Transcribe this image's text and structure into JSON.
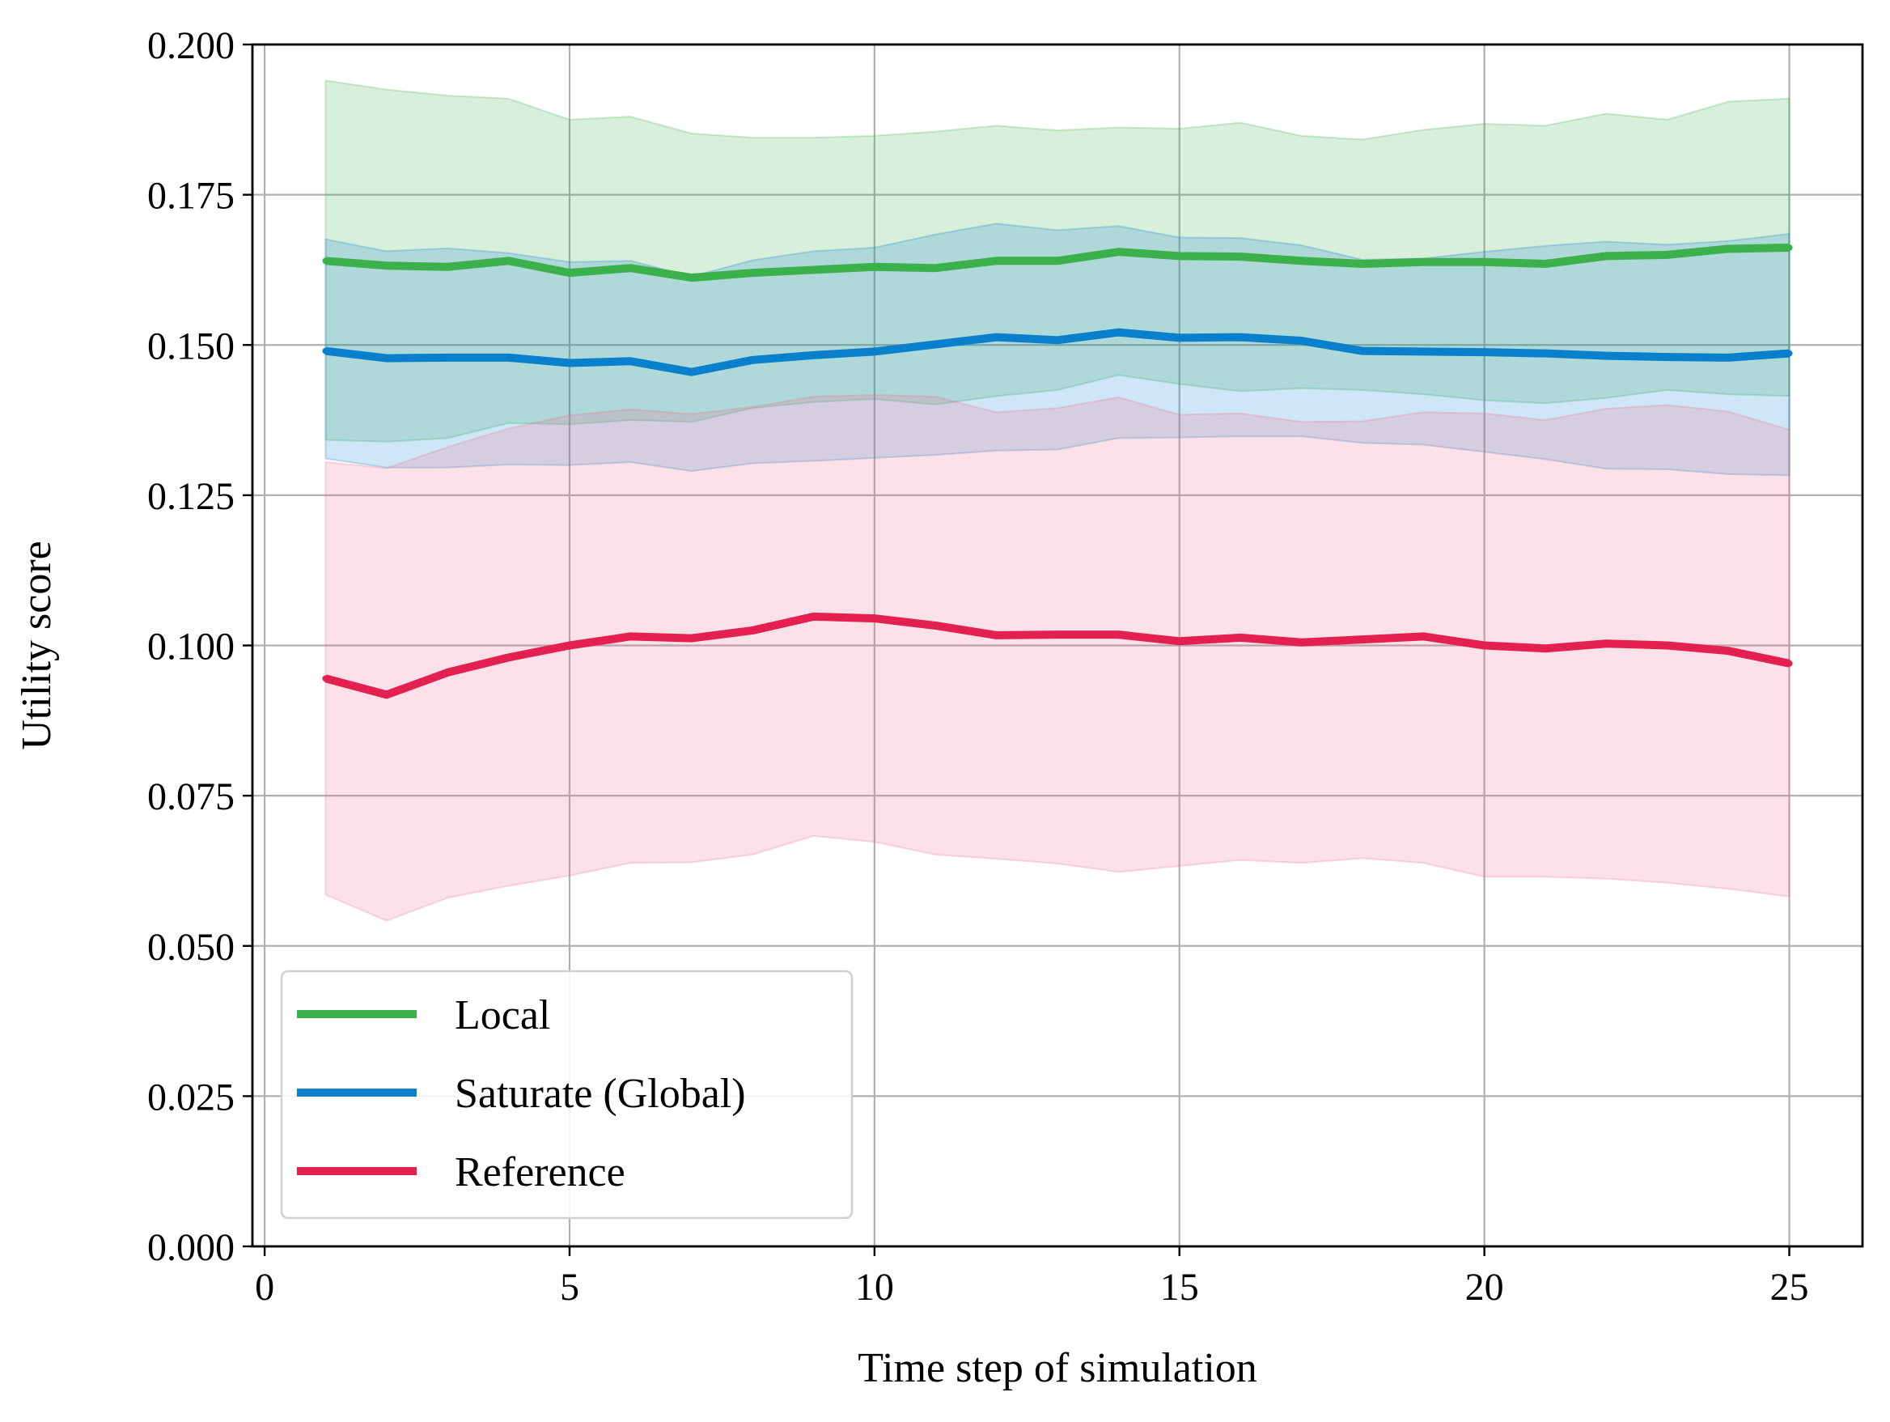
{
  "chart_data": {
    "type": "line",
    "title": "",
    "xlabel": "Time step of simulation",
    "ylabel": "Utility score",
    "xlim": [
      -0.2,
      26.2
    ],
    "ylim": [
      0.0,
      0.2
    ],
    "grid": true,
    "legend_position": "bottom-left",
    "x_ticks": [
      0,
      5,
      10,
      15,
      20,
      25
    ],
    "x_tick_labels": [
      "0",
      "5",
      "10",
      "15",
      "20",
      "25"
    ],
    "y_ticks": [
      0.0,
      0.025,
      0.05,
      0.075,
      0.1,
      0.125,
      0.15,
      0.175,
      0.2
    ],
    "y_tick_labels": [
      "0.000",
      "0.025",
      "0.050",
      "0.075",
      "0.100",
      "0.125",
      "0.150",
      "0.175",
      "0.200"
    ],
    "x": [
      1,
      2,
      3,
      4,
      5,
      6,
      7,
      8,
      9,
      10,
      11,
      12,
      13,
      14,
      15,
      16,
      17,
      18,
      19,
      20,
      21,
      22,
      23,
      24,
      25
    ],
    "series": [
      {
        "name": "Local",
        "color": "#3cb04a",
        "band_color": "#3cb04a",
        "values": [
          0.164,
          0.1632,
          0.163,
          0.164,
          0.162,
          0.1628,
          0.1612,
          0.162,
          0.1625,
          0.163,
          0.1628,
          0.164,
          0.164,
          0.1655,
          0.1648,
          0.1647,
          0.164,
          0.1635,
          0.1638,
          0.1638,
          0.1635,
          0.1648,
          0.165,
          0.166,
          0.1662
        ],
        "upper": [
          0.194,
          0.1925,
          0.1915,
          0.191,
          0.1875,
          0.188,
          0.1852,
          0.1845,
          0.1845,
          0.1848,
          0.1855,
          0.1865,
          0.1857,
          0.1862,
          0.186,
          0.187,
          0.1848,
          0.1842,
          0.1858,
          0.1868,
          0.1865,
          0.1885,
          0.1875,
          0.1905,
          0.191
        ],
        "lower": [
          0.1342,
          0.1339,
          0.1345,
          0.137,
          0.1368,
          0.1375,
          0.1372,
          0.1395,
          0.1405,
          0.141,
          0.1401,
          0.1415,
          0.1425,
          0.145,
          0.1435,
          0.1423,
          0.1428,
          0.1425,
          0.1418,
          0.1408,
          0.1403,
          0.1412,
          0.1425,
          0.1418,
          0.1415
        ]
      },
      {
        "name": "Saturate (Global)",
        "color": "#0a80cc",
        "band_color": "#0a80cc",
        "values": [
          0.149,
          0.1478,
          0.1479,
          0.1479,
          0.147,
          0.1473,
          0.1455,
          0.1475,
          0.1483,
          0.1489,
          0.1501,
          0.1513,
          0.1508,
          0.1521,
          0.1512,
          0.1513,
          0.1507,
          0.149,
          0.1489,
          0.1488,
          0.1486,
          0.1482,
          0.148,
          0.1479,
          0.1486
        ],
        "upper": [
          0.1676,
          0.1656,
          0.1661,
          0.1653,
          0.1638,
          0.164,
          0.1614,
          0.1641,
          0.1656,
          0.1662,
          0.1684,
          0.1702,
          0.1691,
          0.1698,
          0.1679,
          0.1678,
          0.1666,
          0.1642,
          0.1644,
          0.1655,
          0.1665,
          0.1672,
          0.1667,
          0.1673,
          0.1685
        ],
        "lower": [
          0.1311,
          0.1296,
          0.1296,
          0.1301,
          0.13,
          0.1305,
          0.129,
          0.1303,
          0.1307,
          0.1312,
          0.1317,
          0.1324,
          0.1326,
          0.1345,
          0.1346,
          0.1348,
          0.1348,
          0.1337,
          0.1334,
          0.1322,
          0.131,
          0.1294,
          0.1293,
          0.1285,
          0.1283
        ]
      },
      {
        "name": "Reference",
        "color": "#e3204f",
        "band_color": "#ee6d8a",
        "values": [
          0.0945,
          0.0918,
          0.0955,
          0.098,
          0.1,
          0.1015,
          0.1012,
          0.1025,
          0.1048,
          0.1045,
          0.1033,
          0.1017,
          0.1018,
          0.1018,
          0.1007,
          0.1013,
          0.1005,
          0.101,
          0.1015,
          0.1,
          0.0995,
          0.1003,
          0.1,
          0.0991,
          0.097
        ],
        "upper": [
          0.1305,
          0.1295,
          0.133,
          0.1361,
          0.1383,
          0.1393,
          0.1385,
          0.1397,
          0.1414,
          0.1417,
          0.1414,
          0.1388,
          0.1395,
          0.1413,
          0.1384,
          0.1386,
          0.1372,
          0.1373,
          0.1388,
          0.1386,
          0.1375,
          0.1394,
          0.14,
          0.1389,
          0.1359
        ],
        "lower": [
          0.0585,
          0.0542,
          0.058,
          0.06,
          0.0617,
          0.0638,
          0.0639,
          0.0652,
          0.0683,
          0.0673,
          0.0652,
          0.0645,
          0.0637,
          0.0623,
          0.0633,
          0.0643,
          0.0638,
          0.0646,
          0.0638,
          0.0615,
          0.0615,
          0.0612,
          0.0605,
          0.0595,
          0.0582
        ]
      }
    ]
  }
}
